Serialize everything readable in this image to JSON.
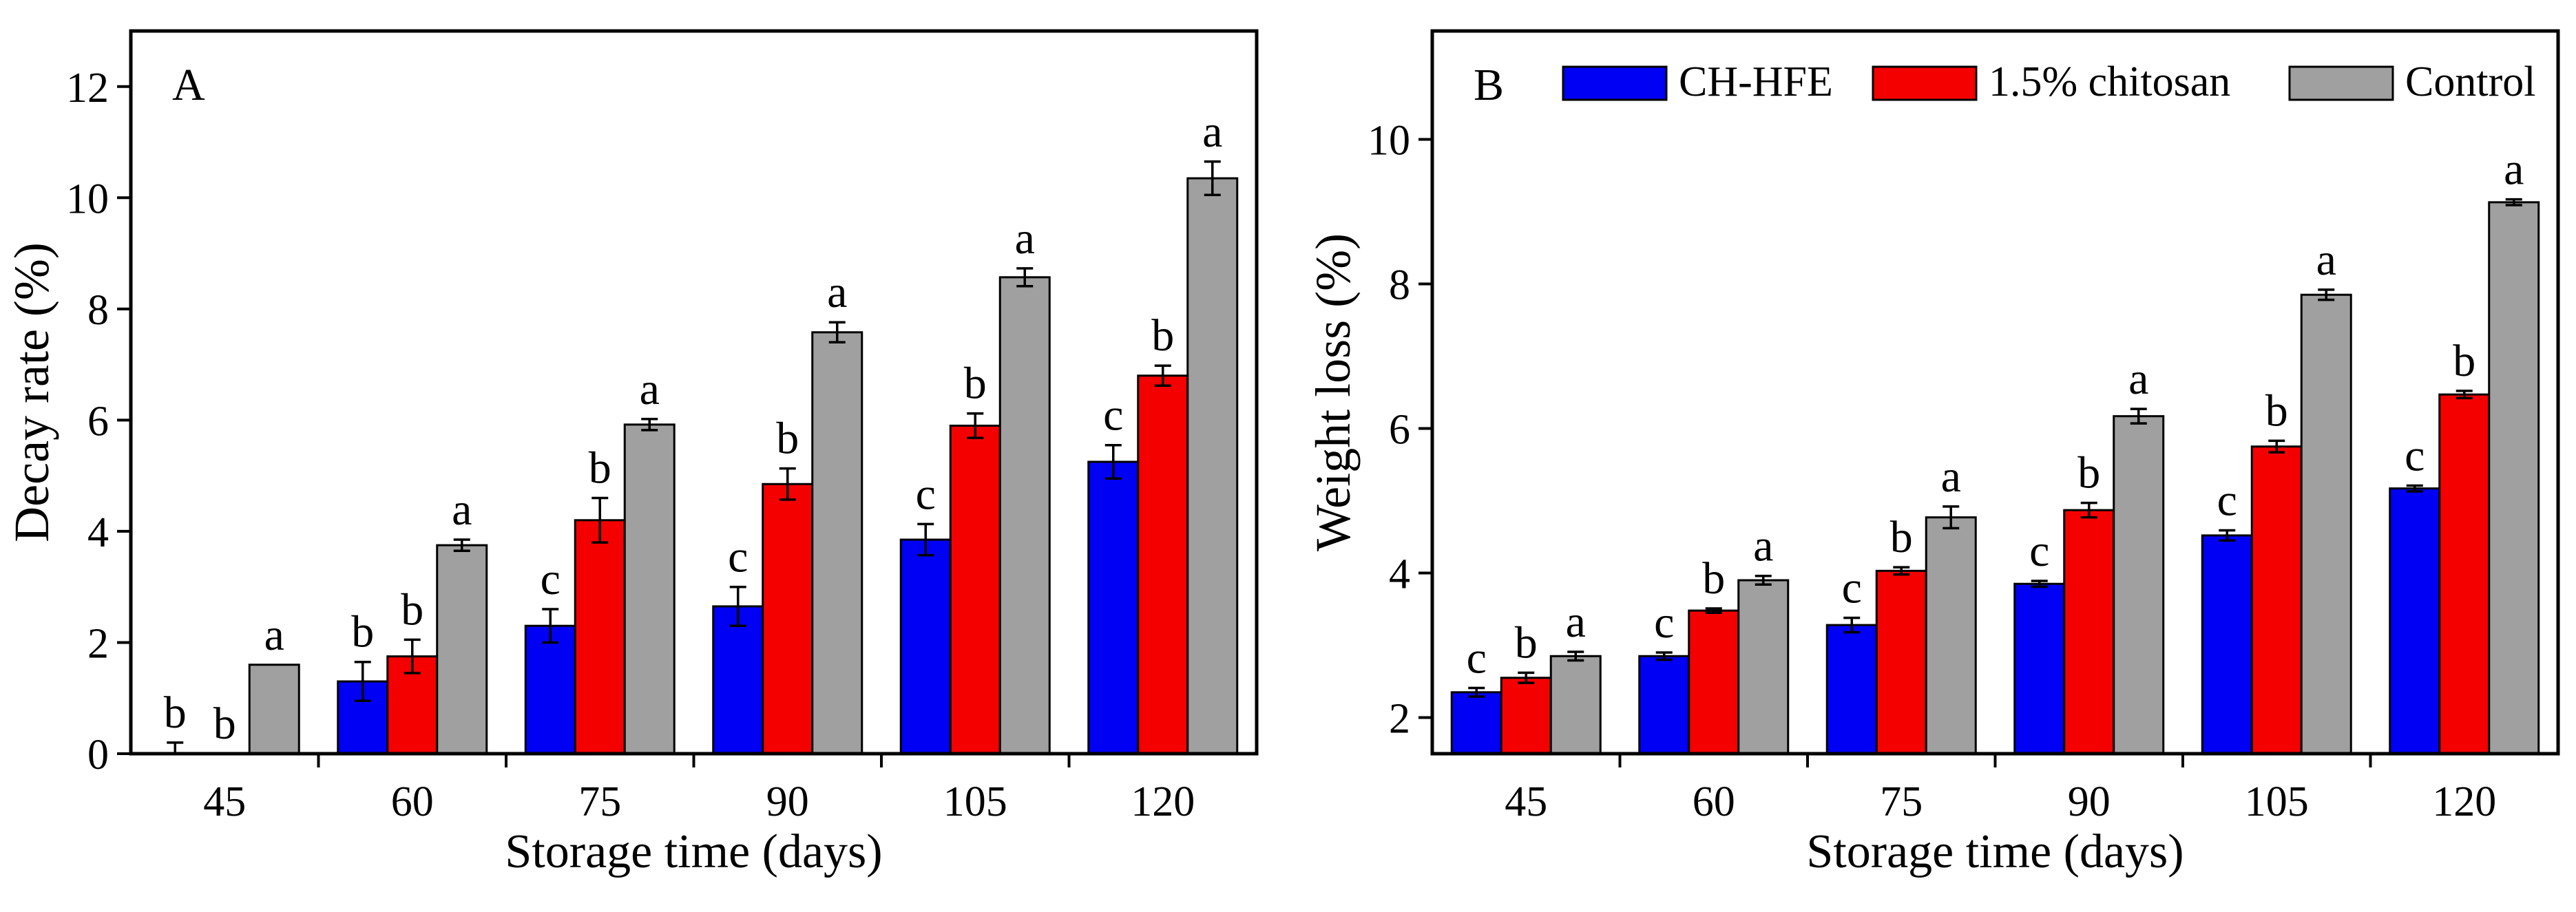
{
  "chart_data": [
    {
      "type": "bar",
      "panel_label": "A",
      "categories": [
        "45",
        "60",
        "75",
        "90",
        "105",
        "120"
      ],
      "xlabel": "Storage time (days)",
      "ylabel": "Decay rate (%)",
      "ylim": [
        0,
        13
      ],
      "yticks": [
        "0",
        "2",
        "4",
        "6",
        "8",
        "10",
        "12"
      ],
      "legend": false,
      "series": [
        {
          "name": "CH-HFE",
          "color": "#0000f5",
          "values": [
            0,
            1.3,
            2.3,
            2.65,
            3.85,
            5.25
          ],
          "errors": [
            0.2,
            0.35,
            0.3,
            0.35,
            0.28,
            0.3
          ],
          "letters": [
            "b",
            "b",
            "c",
            "c",
            "c",
            "c"
          ]
        },
        {
          "name": "1.5% chitosan",
          "color": "#f50000",
          "values": [
            0,
            1.75,
            4.2,
            4.85,
            5.9,
            6.8
          ],
          "errors": [
            0,
            0.3,
            0.4,
            0.28,
            0.22,
            0.18
          ],
          "letters": [
            "b",
            "b",
            "b",
            "b",
            "b",
            "b"
          ]
        },
        {
          "name": "Control",
          "color": "#a0a0a0",
          "values": [
            1.6,
            3.75,
            5.92,
            7.58,
            8.57,
            10.35
          ],
          "errors": [
            0,
            0.1,
            0.1,
            0.18,
            0.16,
            0.3
          ],
          "letters": [
            "a",
            "a",
            "a",
            "a",
            "a",
            "a"
          ]
        }
      ]
    },
    {
      "type": "bar",
      "panel_label": "B",
      "categories": [
        "45",
        "60",
        "75",
        "90",
        "105",
        "120"
      ],
      "xlabel": "Storage time (days)",
      "ylabel": "Weight loss (%)",
      "ylim": [
        1.5,
        11.5
      ],
      "yticks": [
        "2",
        "4",
        "6",
        "8",
        "10"
      ],
      "legend": true,
      "legend_position": "top",
      "series": [
        {
          "name": "CH-HFE",
          "color": "#0000f5",
          "values": [
            2.35,
            2.85,
            3.28,
            3.85,
            4.52,
            5.17
          ],
          "errors": [
            0.06,
            0.05,
            0.1,
            0.04,
            0.07,
            0.04
          ],
          "letters": [
            "c",
            "c",
            "c",
            "c",
            "c",
            "c"
          ]
        },
        {
          "name": "1.5% chitosan",
          "color": "#f50000",
          "values": [
            2.55,
            3.48,
            4.03,
            4.87,
            5.75,
            6.47
          ],
          "errors": [
            0.07,
            0.03,
            0.05,
            0.1,
            0.08,
            0.05
          ],
          "letters": [
            "b",
            "b",
            "b",
            "b",
            "b",
            "b"
          ]
        },
        {
          "name": "Control",
          "color": "#a0a0a0",
          "values": [
            2.85,
            3.9,
            4.77,
            6.17,
            7.85,
            9.13
          ],
          "errors": [
            0.06,
            0.06,
            0.15,
            0.1,
            0.07,
            0.04
          ],
          "letters": [
            "a",
            "a",
            "a",
            "a",
            "a",
            "a"
          ]
        }
      ]
    }
  ]
}
